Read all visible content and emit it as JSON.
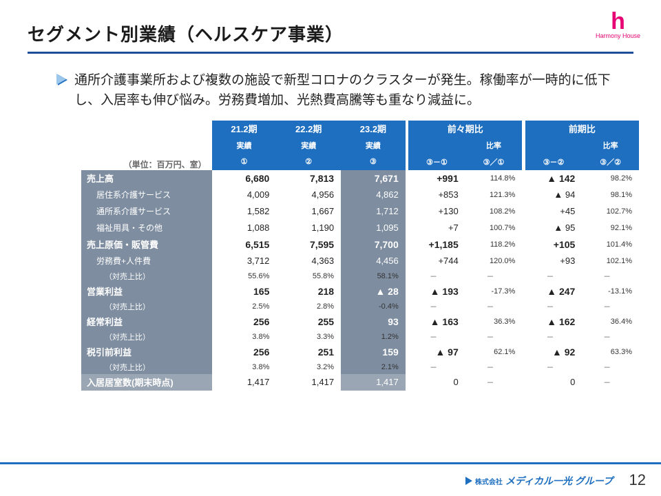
{
  "title": "セグメント別業績（ヘルスケア事業）",
  "logo": {
    "mark": "h",
    "caption": "Harmony House"
  },
  "lead": "通所介護事業所および複数の施設で新型コロナのクラスターが発生。稼働率が一時的に低下し、入居率も伸び悩み。労務費増加、光熱費高騰等も重なり減益に。",
  "table": {
    "unit_label": "（単位：百万円、室）",
    "head1": [
      "21.2期",
      "22.2期",
      "23.2期",
      "前々期比",
      "前期比"
    ],
    "head2": [
      "実績",
      "実績",
      "実績",
      "",
      "比率",
      "",
      "比率"
    ],
    "head3": [
      "①",
      "②",
      "③",
      "③－①",
      "③／①",
      "③－②",
      "③／②"
    ],
    "rows": [
      {
        "label": "売上高",
        "indent": 0,
        "big": true,
        "c": [
          "6,680",
          "7,813",
          "7,671",
          "+991",
          "114.8%",
          "▲ 142",
          "98.2%"
        ]
      },
      {
        "label": "居住系介護サービス",
        "indent": 1,
        "c": [
          "4,009",
          "4,956",
          "4,862",
          "+853",
          "121.3%",
          "▲ 94",
          "98.1%"
        ]
      },
      {
        "label": "通所系介護サービス",
        "indent": 1,
        "c": [
          "1,582",
          "1,667",
          "1,712",
          "+130",
          "108.2%",
          "+45",
          "102.7%"
        ]
      },
      {
        "label": "福祉用具・その他",
        "indent": 1,
        "c": [
          "1,088",
          "1,190",
          "1,095",
          "+7",
          "100.7%",
          "▲ 95",
          "92.1%"
        ]
      },
      {
        "label": "売上原価・販管費",
        "indent": 0,
        "big": true,
        "c": [
          "6,515",
          "7,595",
          "7,700",
          "+1,185",
          "118.2%",
          "+105",
          "101.4%"
        ]
      },
      {
        "label": "労務費+人件費",
        "indent": 1,
        "c": [
          "3,712",
          "4,363",
          "4,456",
          "+744",
          "120.0%",
          "+93",
          "102.1%"
        ]
      },
      {
        "label": "（対売上比）",
        "indent": 2,
        "sm": true,
        "c": [
          "55.6%",
          "55.8%",
          "58.1%",
          "－",
          "－",
          "－",
          "－"
        ]
      },
      {
        "label": "営業利益",
        "indent": 0,
        "big": true,
        "c": [
          "165",
          "218",
          "▲ 28",
          "▲ 193",
          "-17.3%",
          "▲ 247",
          "-13.1%"
        ]
      },
      {
        "label": "（対売上比）",
        "indent": 2,
        "sm": true,
        "c": [
          "2.5%",
          "2.8%",
          "-0.4%",
          "－",
          "－",
          "－",
          "－"
        ]
      },
      {
        "label": "経常利益",
        "indent": 0,
        "big": true,
        "c": [
          "256",
          "255",
          "93",
          "▲ 163",
          "36.3%",
          "▲ 162",
          "36.4%"
        ]
      },
      {
        "label": "（対売上比）",
        "indent": 2,
        "sm": true,
        "c": [
          "3.8%",
          "3.3%",
          "1.2%",
          "－",
          "－",
          "－",
          "－"
        ]
      },
      {
        "label": "税引前利益",
        "indent": 0,
        "big": true,
        "c": [
          "256",
          "251",
          "159",
          "▲ 97",
          "62.1%",
          "▲ 92",
          "63.3%"
        ]
      },
      {
        "label": "（対売上比）",
        "indent": 2,
        "sm": true,
        "c": [
          "3.8%",
          "3.2%",
          "2.1%",
          "－",
          "－",
          "－",
          "－"
        ]
      },
      {
        "label": "入居居室数(期末時点)",
        "indent": 0,
        "last": true,
        "c": [
          "1,417",
          "1,417",
          "1,417",
          "0",
          "－",
          "0",
          "－"
        ]
      }
    ]
  },
  "footer": {
    "company_prefix": "株式会社",
    "company": "メディカル一光 グループ",
    "page": "12"
  },
  "colors": {
    "accent": "#1f6fc0",
    "header_bg": "#1f6fc0",
    "label_bg": "#7e8da0",
    "highlight_col": "#7e8da0",
    "label_last": "#9aa6b3",
    "pink": "#e60073"
  }
}
